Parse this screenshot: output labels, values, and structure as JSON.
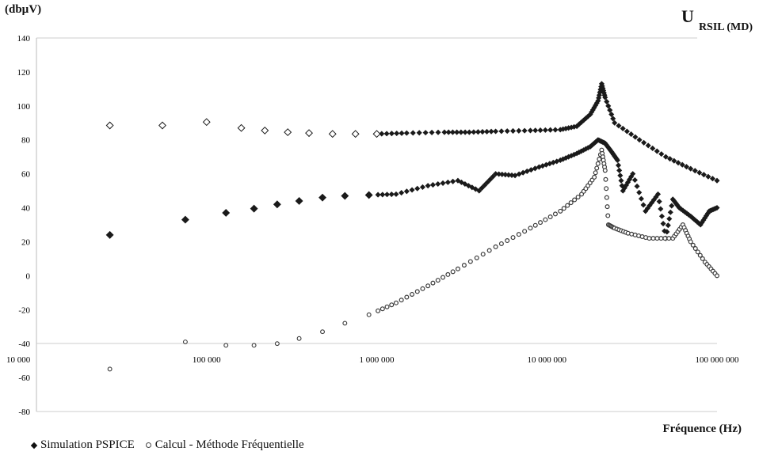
{
  "labels": {
    "y_unit": "(dbµV)",
    "title_main": "U",
    "title_sub": "RSIL (MD)",
    "x_axis": "Fréquence (Hz)"
  },
  "legend": [
    {
      "name": "Simulation PSPICE",
      "marker": "diamond"
    },
    {
      "name": "Calcul - Méthode Fréquentielle",
      "marker": "circle"
    }
  ],
  "chart_data": {
    "type": "scatter",
    "x_scale": "log",
    "xlim": [
      10000,
      100000000
    ],
    "ylim": [
      -80,
      140
    ],
    "x_ticks": [
      {
        "value": 10000,
        "label": "10 000"
      },
      {
        "value": 100000,
        "label": "100 000"
      },
      {
        "value": 1000000,
        "label": "1 000 000"
      },
      {
        "value": 10000000,
        "label": "10 000 000"
      },
      {
        "value": 100000000,
        "label": "100 000 000"
      }
    ],
    "y_ticks": [
      -80,
      -60,
      -40,
      -20,
      0,
      20,
      40,
      60,
      80,
      100,
      120,
      140
    ],
    "grid": false,
    "legend_position": "bottom-left",
    "series": [
      {
        "name": "Simulation PSPICE",
        "marker": "diamond",
        "color": "#1a1a1a",
        "x": [
          27000,
          55000,
          100000,
          160000,
          220000,
          300000,
          400000,
          550000,
          750000,
          1000000,
          1500000,
          2500000,
          3500000,
          5000000,
          8000000,
          12000000,
          15000000,
          18000000,
          20000000,
          21000000,
          22000000,
          25000000,
          35000000,
          50000000,
          70000000,
          100000000
        ],
        "y": [
          88.5,
          88.5,
          90.5,
          87,
          85.5,
          84.5,
          84,
          83.5,
          83.5,
          83.5,
          84,
          84.5,
          84.5,
          85,
          85.5,
          86,
          88,
          95,
          103,
          113,
          105,
          90,
          80,
          70,
          63,
          56
        ]
      },
      {
        "name": "Simulation PSPICE",
        "marker": "diamond",
        "color": "#1a1a1a",
        "x": [
          27000,
          75000,
          130000,
          190000,
          260000,
          350000,
          480000,
          650000,
          900000,
          1300000,
          2000000,
          3000000,
          4000000,
          5000000,
          6500000,
          9000000,
          12000000,
          15000000,
          18000000,
          20000000,
          22000000,
          24000000,
          26000000,
          28000000,
          32000000,
          38000000,
          45000000,
          50000000,
          55000000,
          60000000,
          70000000,
          80000000,
          90000000,
          100000000
        ],
        "y": [
          24,
          33,
          37,
          39.5,
          42,
          44,
          46,
          47,
          47.5,
          48,
          53,
          56,
          50,
          60,
          59,
          64,
          68,
          72,
          76,
          80,
          78,
          73,
          68,
          50,
          60,
          38,
          48,
          22,
          45,
          40,
          35,
          30,
          38,
          40
        ]
      },
      {
        "name": "Calcul - Méthode Fréquentielle",
        "marker": "circle",
        "color": "#3a3a3a",
        "x": [
          27000,
          75000,
          130000,
          190000,
          260000,
          350000,
          480000,
          650000,
          900000,
          1300000,
          2000000,
          3000000,
          5000000,
          8000000,
          12000000,
          16000000,
          19000000,
          21000000,
          22000000,
          23000000,
          25000000,
          30000000,
          40000000,
          55000000,
          63000000,
          70000000,
          85000000,
          100000000
        ],
        "y": [
          -55,
          -39,
          -41,
          -41,
          -40,
          -37,
          -33,
          -28,
          -23,
          -16,
          -6,
          4,
          17,
          28,
          38,
          48,
          58,
          74,
          62,
          30,
          28,
          25,
          22,
          22,
          30,
          20,
          8,
          0
        ]
      }
    ]
  }
}
